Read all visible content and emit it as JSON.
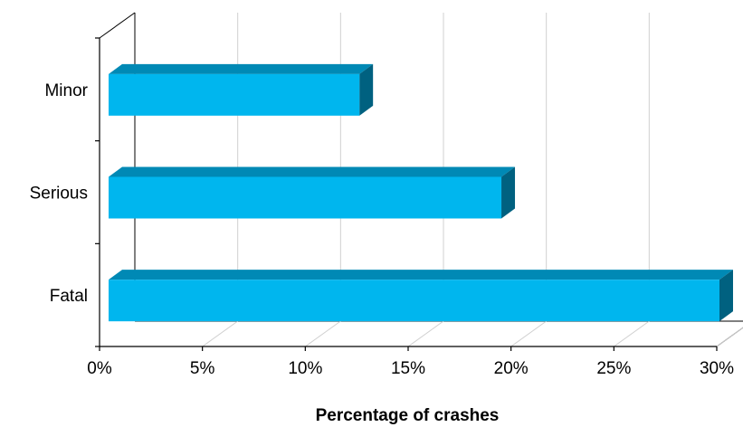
{
  "chart_data": {
    "type": "bar",
    "orientation": "horizontal",
    "three_d": true,
    "categories": [
      "Minor",
      "Serious",
      "Fatal"
    ],
    "values": [
      12.5,
      19.4,
      30.0
    ],
    "value_unit": "%",
    "title": "",
    "xlabel": "Percentage of crashes",
    "ylabel": "",
    "xlim": [
      0,
      30
    ],
    "x_ticks": [
      0,
      5,
      10,
      15,
      20,
      25,
      30
    ],
    "x_tick_labels": [
      "0%",
      "5%",
      "10%",
      "15%",
      "20%",
      "25%",
      "30%"
    ],
    "grid": "vertical",
    "legend": "none",
    "colors": {
      "bar_front": "#00B6EE",
      "bar_top": "#0089B5",
      "bar_side": "#006180",
      "gridline": "#D0D0D0",
      "axis": "#000000"
    }
  }
}
